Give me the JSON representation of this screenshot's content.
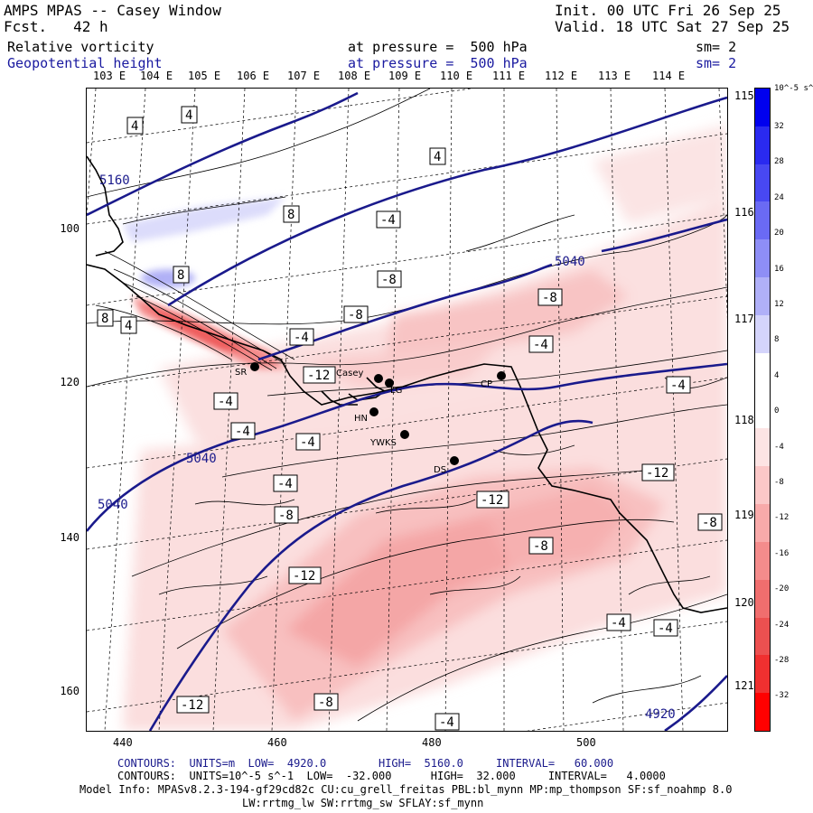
{
  "header": {
    "title": "AMPS MPAS -- Casey Window",
    "forecast": "Fcst.   42 h",
    "init": "Init. 00 UTC Fri 26 Sep 25",
    "valid": "Valid. 18 UTC Sat 27 Sep 25",
    "field1": {
      "name": "Relative vorticity",
      "level": "at pressure =  500 hPa",
      "sm": "sm= 2"
    },
    "field2": {
      "name": "Geopotential height",
      "level": "at pressure =  500 hPa",
      "sm": "sm= 2"
    }
  },
  "longitude_labels": [
    "103 E",
    "104 E",
    "105 E",
    "106 E",
    "107 E",
    "108 E",
    "109 E",
    "110 E",
    "111 E",
    "112 E",
    "113 E",
    "114 E"
  ],
  "right_labels": [
    "115 E",
    "116 E",
    "117 E",
    "118 E",
    "119 E",
    "120 E",
    "121 E"
  ],
  "y_ticks": [
    "100",
    "120",
    "140",
    "160"
  ],
  "x_ticks": [
    "440",
    "460",
    "480",
    "500"
  ],
  "colorbar": {
    "unit": "10^-5 s^-1",
    "labels": [
      "32",
      "28",
      "24",
      "20",
      "16",
      "12",
      "8",
      "4",
      "0",
      "-4",
      "-8",
      "-12",
      "-16",
      "-20",
      "-24",
      "-28",
      "-32"
    ],
    "colors": [
      "#0000ee",
      "#2a2af0",
      "#4848f2",
      "#6a6af4",
      "#8e8ef6",
      "#b0b0f8",
      "#d4d4fb",
      "#ffffff",
      "#ffffff",
      "#fde4e4",
      "#fbc8c8",
      "#f8aaaa",
      "#f48c8c",
      "#f06e6e",
      "#ec5050",
      "#f03030",
      "#ff0000"
    ]
  },
  "height_contour_labels": [
    "5160",
    "5040",
    "5040",
    "5040",
    "4920"
  ],
  "vorticity_labels": [
    "4",
    "4",
    "4",
    "8",
    "8",
    "8",
    "4",
    "-4",
    "-8",
    "-8",
    "-4",
    "-12",
    "-4",
    "-4",
    "-4",
    "-4",
    "-8",
    "-12",
    "-12",
    "-8",
    "-8",
    "-12",
    "-8",
    "-4",
    "-4",
    "-4",
    "-12",
    "-8",
    "-4",
    "-4"
  ],
  "stations": [
    "SR",
    "Casey",
    "LG",
    "HN",
    "YWKS",
    "DS",
    "CP"
  ],
  "footer": {
    "line1": "CONTOURS:  UNITS=m  LOW=  4920.0        HIGH=  5160.0     INTERVAL=   60.000",
    "line2": "CONTOURS:  UNITS=10^-5 s^-1  LOW=  -32.000      HIGH=  32.000     INTERVAL=   4.0000",
    "line3": "Model Info: MPASv8.2.3-194-gf29cd82c CU:cu_grell_freitas PBL:bl_mynn MP:mp_thompson SF:sf_noahmp 8.0",
    "line4": "LW:rrtmg_lw SW:rrtmg_sw SFLAY:sf_mynn"
  }
}
